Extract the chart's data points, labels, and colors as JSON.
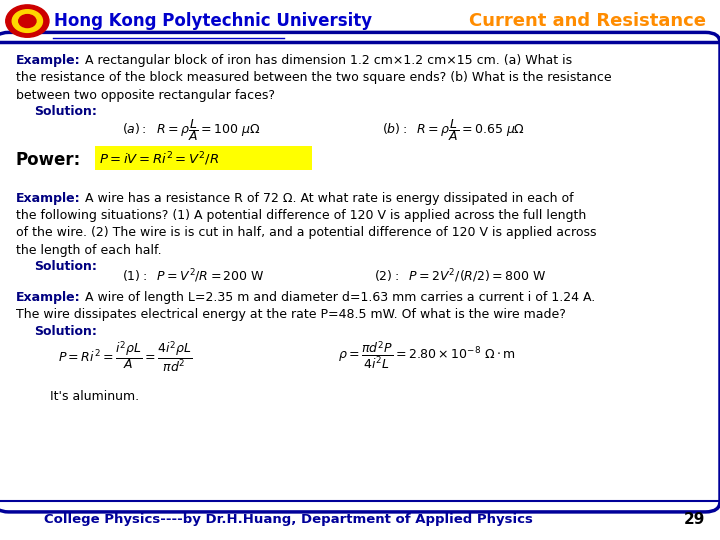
{
  "title_left": "Hong Kong Polytechnic University",
  "title_right": "Current and Resistance",
  "title_left_color": "#0000CC",
  "title_right_color": "#FF8C00",
  "background_color": "#FFFFFF",
  "border_color": "#000099",
  "footer_text": "College Physics----by Dr.H.Huang, Department of Applied Physics",
  "footer_page": "29",
  "footer_color": "#000099"
}
